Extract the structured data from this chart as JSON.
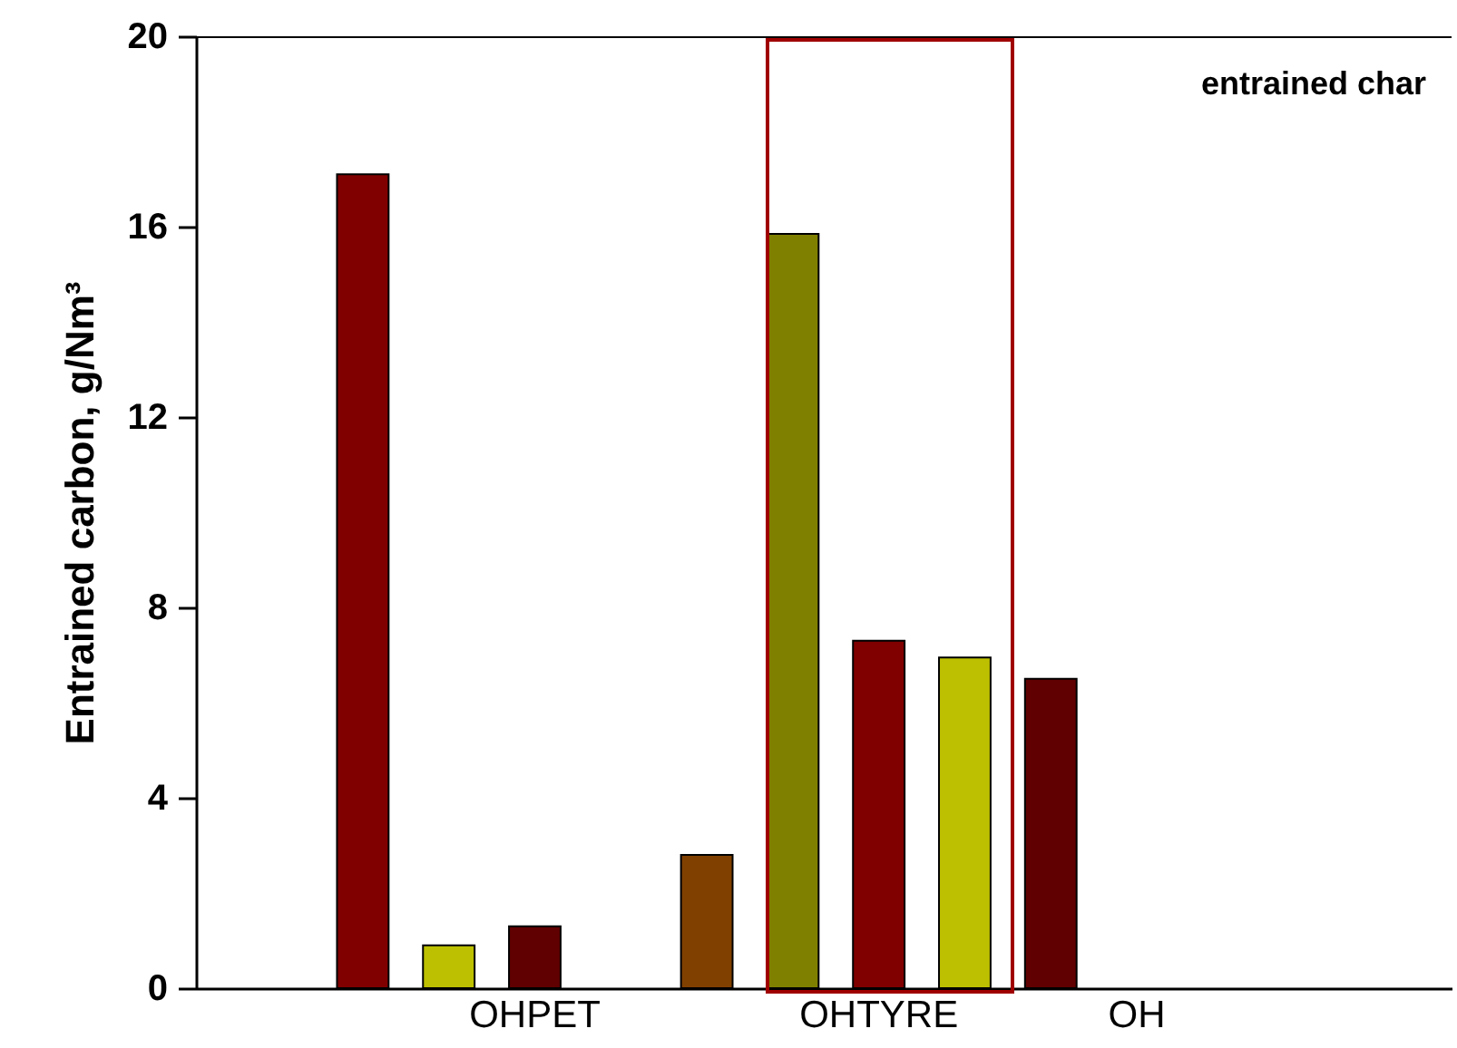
{
  "chart_data": {
    "type": "bar",
    "categories": [
      null,
      null,
      "OHPET",
      null,
      null,
      null,
      "OHTYRE",
      null,
      null,
      "OH",
      null,
      null,
      null
    ],
    "values": [
      17.1,
      0.9,
      1.3,
      null,
      2.8,
      15.85,
      7.3,
      6.95,
      6.5,
      null,
      null,
      null,
      null
    ],
    "colors": [
      "#800000",
      "#bcc000",
      "#600000",
      "#ffffff",
      "#804000",
      "#808000",
      "#800000",
      "#bcc000",
      "#600000",
      "#ffffff",
      "#ffffff",
      "#ffffff",
      "#ffffff"
    ],
    "ylabel": "Entrained carbon, g/Nm³",
    "annotations": [
      "entrained char"
    ],
    "ylim": [
      0,
      20
    ],
    "yticks": [
      0,
      4,
      8,
      12,
      16,
      20
    ]
  }
}
